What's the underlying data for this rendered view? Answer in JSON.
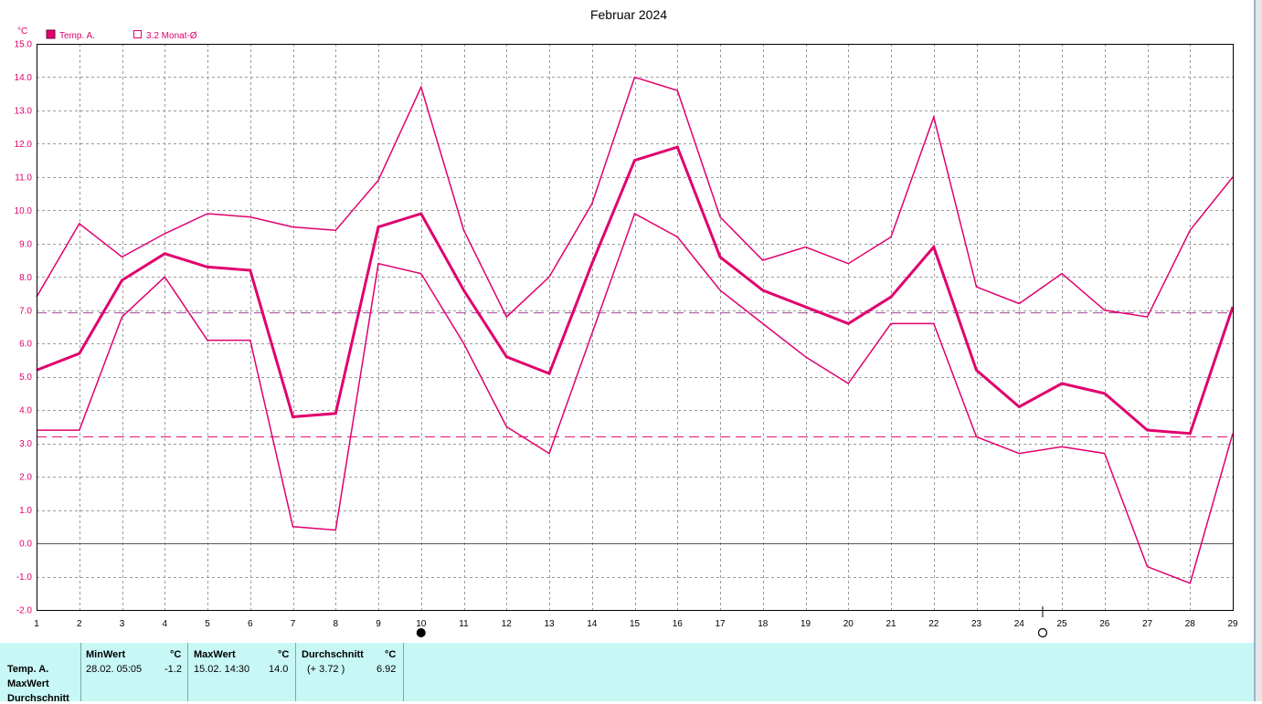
{
  "chart_data": {
    "type": "line",
    "title": "Februar 2024",
    "ylabel": "°C",
    "x": [
      1,
      2,
      3,
      4,
      5,
      6,
      7,
      8,
      9,
      10,
      11,
      12,
      13,
      14,
      15,
      16,
      17,
      18,
      19,
      20,
      21,
      22,
      23,
      24,
      25,
      26,
      27,
      28,
      29
    ],
    "ylim": [
      -2.0,
      15.0
    ],
    "yticks": [
      "15.0",
      "14.0",
      "13.0",
      "12.0",
      "11.0",
      "10.0",
      "9.0",
      "8.0",
      "7.0",
      "6.0",
      "5.0",
      "4.0",
      "3.0",
      "2.0",
      "1.0",
      "0.0",
      "-1.0",
      "-2.0"
    ],
    "grid": true,
    "legend": [
      {
        "label": "Temp. A.",
        "style": "filled",
        "color": "#e0006e"
      },
      {
        "label": "3.2 Monat-Ø",
        "style": "empty",
        "color": "#e0006e"
      }
    ],
    "series": [
      {
        "values": [
          5.2,
          5.7,
          7.9,
          8.7,
          8.3,
          8.2,
          3.8,
          3.9,
          9.5,
          9.9,
          7.6,
          5.6,
          5.1,
          8.4,
          11.5,
          11.9,
          8.6,
          7.6,
          7.1,
          6.6,
          7.4,
          8.9,
          5.2,
          4.1,
          4.8,
          4.5,
          3.4,
          3.3,
          7.1
        ],
        "color": "#e0006e",
        "width": 3
      },
      {
        "values": [
          7.4,
          9.6,
          8.6,
          9.3,
          9.9,
          9.8,
          9.5,
          9.4,
          10.9,
          13.7,
          9.4,
          6.8,
          8.0,
          10.2,
          14.0,
          13.6,
          9.8,
          8.5,
          8.9,
          8.4,
          9.2,
          12.8,
          7.7,
          7.2,
          8.1,
          7.0,
          6.8,
          9.4,
          11.0
        ],
        "color": "#e0006e",
        "width": 1.5
      },
      {
        "values": [
          3.4,
          3.4,
          6.8,
          8.0,
          6.1,
          6.1,
          0.5,
          0.4,
          8.4,
          8.1,
          6.0,
          3.5,
          2.7,
          6.3,
          9.9,
          9.2,
          7.6,
          6.6,
          5.6,
          4.8,
          6.6,
          6.6,
          3.2,
          2.7,
          2.9,
          2.7,
          -0.7,
          -1.2,
          3.3
        ],
        "color": "#e0006e",
        "width": 1.5
      }
    ],
    "reference_lines": [
      {
        "y": 6.92,
        "color": "#a0449a"
      },
      {
        "y": 3.2,
        "color": "#e0006e"
      }
    ],
    "moon_markers": [
      {
        "x": 10,
        "phase": "full"
      },
      {
        "x": 24.55,
        "phase": "new"
      }
    ]
  },
  "stats": {
    "row_labels": [
      "Temp. A.",
      "MaxWert",
      "Durchschnitt"
    ],
    "min": {
      "header": "MinWert",
      "unit": "°C",
      "date": "28.02.  05:05",
      "value": "-1.2"
    },
    "max": {
      "header": "MaxWert",
      "unit": "°C",
      "date": "15.02.  14:30",
      "value": "14.0"
    },
    "avg": {
      "header": "Durchschnitt",
      "unit": "°C",
      "delta": "(+ 3.72 )",
      "value": "6.92"
    }
  }
}
